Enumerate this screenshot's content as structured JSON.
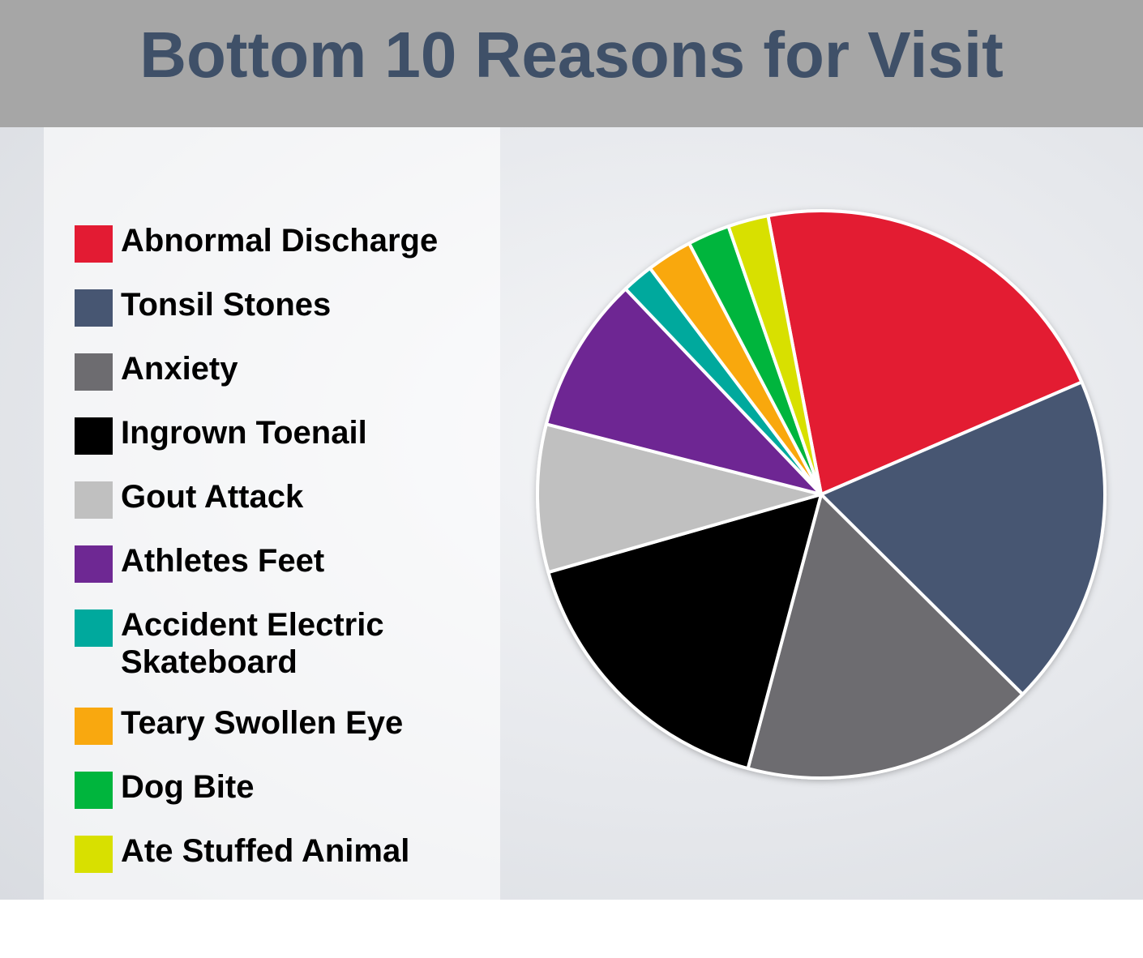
{
  "chart_data": {
    "type": "pie",
    "title": "Bottom 10 Reasons for Visit",
    "categories": [
      "Abnormal Discharge",
      "Tonsil Stones",
      "Anxiety",
      "Ingrown Toenail",
      "Gout Attack",
      "Athletes Feet",
      "Accident Electric Skateboard",
      "Teary Swollen Eye",
      "Dog Bite",
      "Ate Stuffed Animal"
    ],
    "values": [
      21.5,
      18.9,
      16.7,
      16.4,
      8.4,
      8.9,
      1.8,
      2.6,
      2.4,
      2.3
    ],
    "colors": [
      "#e31b33",
      "#475672",
      "#6d6c70",
      "#000000",
      "#c0c0c0",
      "#6e2893",
      "#00a99d",
      "#f9a80f",
      "#00b53d",
      "#d8e000"
    ]
  }
}
